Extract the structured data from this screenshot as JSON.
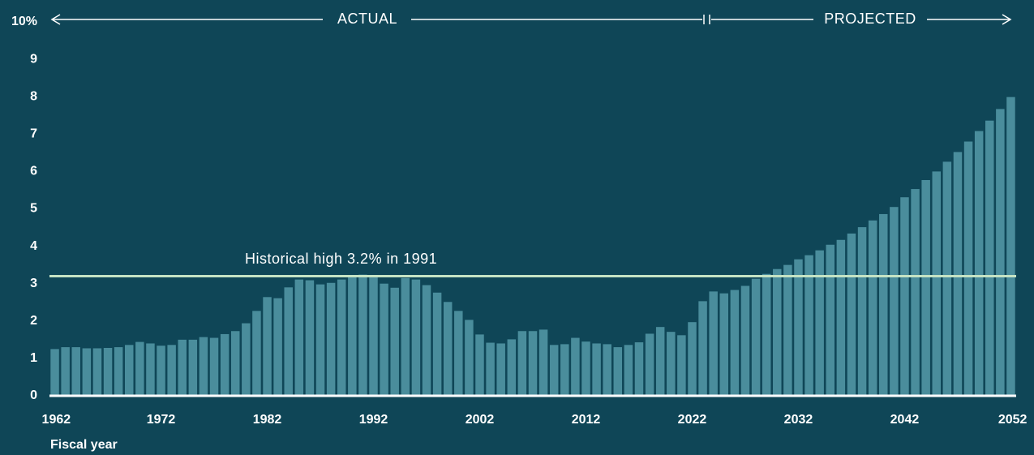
{
  "chart_data": {
    "type": "bar",
    "x": [
      1962,
      1963,
      1964,
      1965,
      1966,
      1967,
      1968,
      1969,
      1970,
      1971,
      1972,
      1973,
      1974,
      1975,
      1976,
      1977,
      1978,
      1979,
      1980,
      1981,
      1982,
      1983,
      1984,
      1985,
      1986,
      1987,
      1988,
      1989,
      1990,
      1991,
      1992,
      1993,
      1994,
      1995,
      1996,
      1997,
      1998,
      1999,
      2000,
      2001,
      2002,
      2003,
      2004,
      2005,
      2006,
      2007,
      2008,
      2009,
      2010,
      2011,
      2012,
      2013,
      2014,
      2015,
      2016,
      2017,
      2018,
      2019,
      2020,
      2021,
      2022,
      2023,
      2024,
      2025,
      2026,
      2027,
      2028,
      2029,
      2030,
      2031,
      2032,
      2033,
      2034,
      2035,
      2036,
      2037,
      2038,
      2039,
      2040,
      2041,
      2042,
      2043,
      2044,
      2045,
      2046,
      2047,
      2048,
      2049,
      2050,
      2051,
      2052
    ],
    "values": [
      1.25,
      1.3,
      1.3,
      1.27,
      1.27,
      1.28,
      1.3,
      1.36,
      1.44,
      1.4,
      1.34,
      1.36,
      1.5,
      1.5,
      1.57,
      1.55,
      1.65,
      1.73,
      1.94,
      2.27,
      2.64,
      2.61,
      2.9,
      3.11,
      3.09,
      2.98,
      3.02,
      3.11,
      3.2,
      3.24,
      3.17,
      3.0,
      2.89,
      3.15,
      3.11,
      2.96,
      2.76,
      2.51,
      2.27,
      2.03,
      1.64,
      1.42,
      1.4,
      1.51,
      1.73,
      1.73,
      1.77,
      1.36,
      1.38,
      1.55,
      1.45,
      1.4,
      1.38,
      1.3,
      1.36,
      1.43,
      1.66,
      1.84,
      1.71,
      1.62,
      1.97,
      2.53,
      2.79,
      2.74,
      2.83,
      2.94,
      3.13,
      3.26,
      3.39,
      3.5,
      3.65,
      3.76,
      3.89,
      4.04,
      4.17,
      4.34,
      4.51,
      4.69,
      4.86,
      5.05,
      5.31,
      5.53,
      5.77,
      6.0,
      6.26,
      6.52,
      6.8,
      7.08,
      7.36,
      7.67,
      7.99
    ],
    "color": "#4a8d9c",
    "xlim": [
      1961.5,
      2052.5
    ],
    "xticks": [
      1962,
      1972,
      1982,
      1992,
      2002,
      2012,
      2022,
      2032,
      2042,
      2052
    ],
    "ylim": [
      0,
      10
    ],
    "yticks": [
      0,
      1,
      2,
      3,
      4,
      5,
      6,
      7,
      8,
      9,
      {
        "value": 10,
        "label": "10%"
      }
    ],
    "xlabel": "Fiscal year",
    "period_labels": [
      "ACTUAL",
      "PROJECTED"
    ],
    "reference_line": {
      "value": 3.2,
      "label": "Historical high 3.2% in 1991",
      "color": "#c5e3c4"
    }
  }
}
